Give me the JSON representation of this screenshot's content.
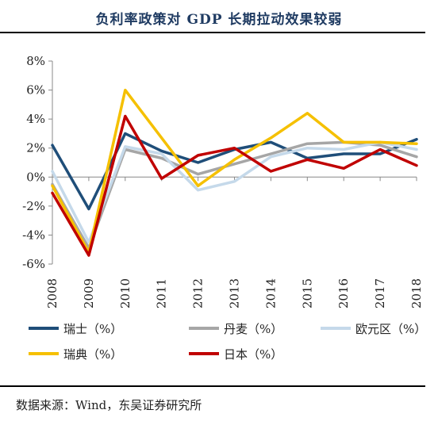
{
  "title": "负利率政策对 GDP 长期拉动效果较弱",
  "source": "数据来源：Wind，东吴证券研究所",
  "chart_data": {
    "type": "line",
    "x": [
      "2008",
      "2009",
      "2010",
      "2011",
      "2012",
      "2013",
      "2014",
      "2015",
      "2016",
      "2017",
      "2018"
    ],
    "ylim": [
      -6,
      8
    ],
    "yticks": [
      -6,
      -4,
      -2,
      0,
      2,
      4,
      6,
      8
    ],
    "ytick_labels": [
      "-6%",
      "-4%",
      "-2%",
      "0%",
      "2%",
      "4%",
      "6%",
      "8%"
    ],
    "grid": false,
    "legend_position": "bottom",
    "series": [
      {
        "name": "瑞士（%）",
        "color": "#1f4e79",
        "values": [
          2.2,
          -2.2,
          3.0,
          1.8,
          1.0,
          1.9,
          2.4,
          1.3,
          1.6,
          1.6,
          2.6
        ]
      },
      {
        "name": "丹麦（%）",
        "color": "#a6a6a6",
        "values": [
          -0.5,
          -4.9,
          1.9,
          1.3,
          0.2,
          0.9,
          1.6,
          2.3,
          2.4,
          2.2,
          1.4
        ]
      },
      {
        "name": "欧元区（%）",
        "color": "#c5d9ea",
        "values": [
          0.4,
          -4.5,
          2.1,
          1.6,
          -0.9,
          -0.3,
          1.4,
          2.0,
          1.9,
          2.4,
          1.9
        ]
      },
      {
        "name": "瑞典（%）",
        "color": "#f5c000",
        "values": [
          -0.6,
          -5.2,
          6.0,
          2.7,
          -0.6,
          1.2,
          2.7,
          4.4,
          2.4,
          2.4,
          2.3
        ]
      },
      {
        "name": "日本（%）",
        "color": "#c00000",
        "values": [
          -1.1,
          -5.4,
          4.2,
          -0.1,
          1.5,
          2.0,
          0.4,
          1.2,
          0.6,
          1.9,
          0.8
        ]
      }
    ]
  }
}
